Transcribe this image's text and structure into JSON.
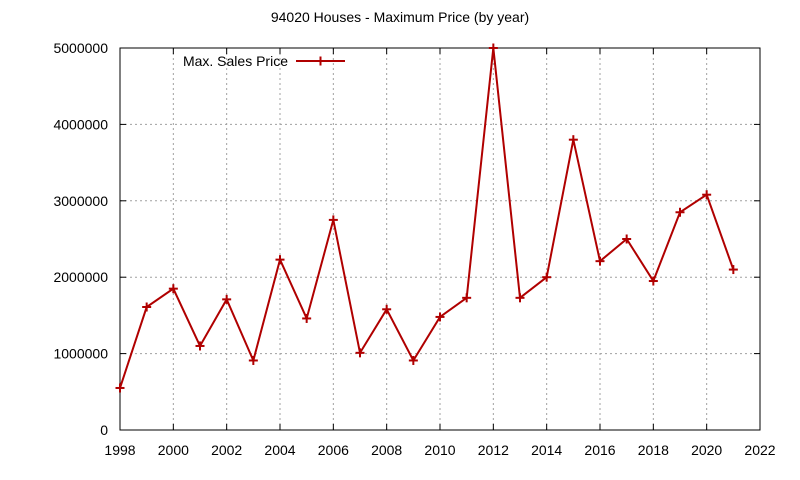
{
  "chart_data": {
    "type": "line",
    "title": "94020 Houses - Maximum Price (by year)",
    "xlabel": "",
    "ylabel": "",
    "xlim": [
      1998,
      2022
    ],
    "ylim": [
      0,
      5000000
    ],
    "x_ticks": [
      "1998",
      "2000",
      "2002",
      "2004",
      "2006",
      "2008",
      "2010",
      "2012",
      "2014",
      "2016",
      "2018",
      "2020",
      "2022"
    ],
    "y_ticks": [
      "0",
      "1000000",
      "2000000",
      "3000000",
      "4000000",
      "5000000"
    ],
    "grid": true,
    "legend_position": "top-left",
    "series": [
      {
        "name": "Max. Sales Price",
        "color": "#b00000",
        "marker": "plus",
        "x": [
          1998,
          1999,
          2000,
          2001,
          2002,
          2003,
          2004,
          2005,
          2006,
          2007,
          2008,
          2009,
          2010,
          2011,
          2012,
          2013,
          2014,
          2015,
          2016,
          2017,
          2018,
          2019,
          2020,
          2021
        ],
        "y": [
          550000,
          1610000,
          1850000,
          1100000,
          1710000,
          910000,
          2230000,
          1460000,
          2750000,
          1010000,
          1580000,
          910000,
          1480000,
          1730000,
          5000000,
          1730000,
          2000000,
          3800000,
          2210000,
          2500000,
          1950000,
          2850000,
          3080000,
          2100000
        ]
      }
    ]
  }
}
